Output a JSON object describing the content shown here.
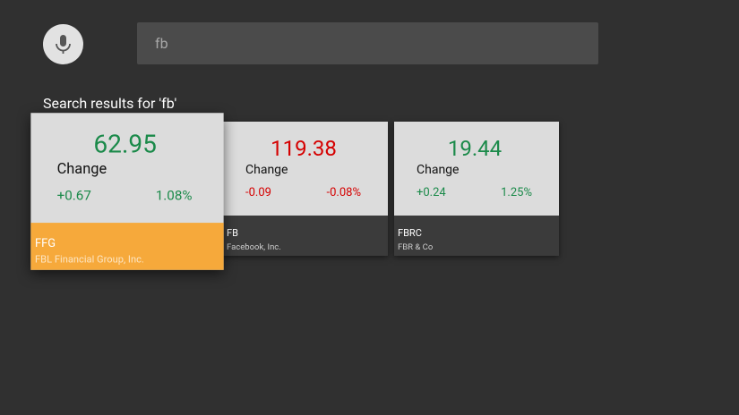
{
  "search": {
    "query": "fb",
    "heading": "Search results for 'fb'"
  },
  "results": [
    {
      "price": "62.95",
      "change_label": "Change",
      "change": "+0.67",
      "percent": "1.08%",
      "symbol": "FFG",
      "name": "FBL Financial Group, Inc."
    },
    {
      "price": "119.38",
      "change_label": "Change",
      "change": "-0.09",
      "percent": "-0.08%",
      "symbol": "FB",
      "name": "Facebook, Inc."
    },
    {
      "price": "19.44",
      "change_label": "Change",
      "change": "+0.24",
      "percent": "1.25%",
      "symbol": "FBRC",
      "name": "FBR & Co"
    }
  ]
}
